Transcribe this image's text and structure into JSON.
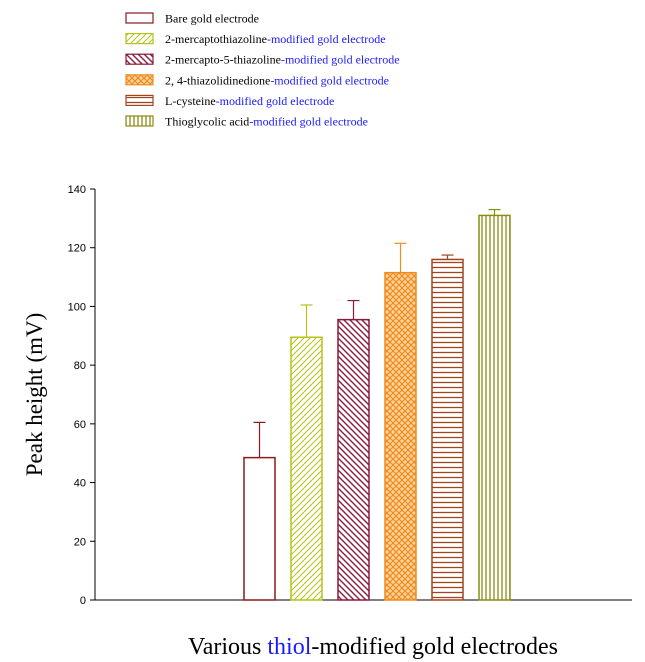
{
  "chart_data": {
    "type": "bar",
    "title": "",
    "ylabel": "Peak height (mV)",
    "xlabel_parts": [
      "Various ",
      "thiol",
      "-modified gold electrodes"
    ],
    "ylim": [
      0,
      140
    ],
    "yticks": [
      0,
      20,
      40,
      60,
      80,
      100,
      120,
      140
    ],
    "legend_position": "top-left",
    "grid": false,
    "series": [
      {
        "name_parts": [
          "Bare gold electrode",
          ""
        ],
        "value": 48.5,
        "error": 12,
        "edge_color": "#8b1a1a",
        "pattern": "none"
      },
      {
        "name_parts": [
          "2-mercaptothiazoline",
          "-modified gold electrode"
        ],
        "value": 89.5,
        "error": 11,
        "edge_color": "#b5c218",
        "pattern": "diag-right"
      },
      {
        "name_parts": [
          "2-mercapto-5-thiazoline",
          "-modified gold electrode"
        ],
        "value": 95.5,
        "error": 6.5,
        "edge_color": "#8b1a3a",
        "pattern": "diag-left"
      },
      {
        "name_parts": [
          "2, 4-thiazolidinedione",
          "-modified gold electrode"
        ],
        "value": 111.5,
        "error": 10,
        "edge_color": "#f08c1e",
        "pattern": "cross"
      },
      {
        "name_parts": [
          "L-cysteine",
          "-modified gold electrode"
        ],
        "value": 116,
        "error": 1.5,
        "edge_color": "#a0461e",
        "pattern": "horizontal"
      },
      {
        "name_parts": [
          "Thioglycolic acid",
          "-modified gold electrode"
        ],
        "value": 131,
        "error": 2,
        "edge_color": "#8b8c14",
        "pattern": "vertical"
      }
    ],
    "colors": {
      "legend_name_color": "#000000",
      "legend_suffix_color": "#1a1aff",
      "xlabel_highlight": "#1a1aff"
    }
  }
}
